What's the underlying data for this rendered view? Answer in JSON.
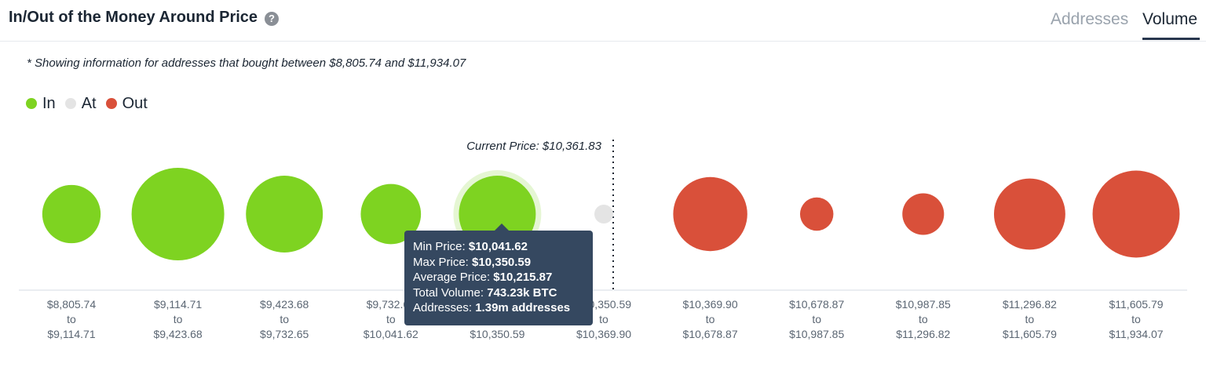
{
  "header": {
    "title": "In/Out of the Money Around Price",
    "help_icon": "question-mark-icon",
    "tabs": [
      {
        "label": "Addresses",
        "active": false
      },
      {
        "label": "Volume",
        "active": true
      }
    ]
  },
  "note": "* Showing information for addresses that bought between $8,805.74 and $11,934.07",
  "legend": [
    {
      "label": "In",
      "color": "#7ed321"
    },
    {
      "label": "At",
      "color": "#e4e4e4"
    },
    {
      "label": "Out",
      "color": "#d9503a"
    }
  ],
  "chart_data": {
    "type": "bubble",
    "current_price_label": "Current Price: $10,361.83",
    "current_price": 10361.83,
    "size_metric": "Total Volume (BTC)",
    "categories": [
      {
        "from": "$8,805.74",
        "to": "$9,114.71",
        "status": "In",
        "relative_size": 0.63
      },
      {
        "from": "$9,114.71",
        "to": "$9,423.68",
        "status": "In",
        "relative_size": 1.0
      },
      {
        "from": "$9,423.68",
        "to": "$9,732.65",
        "status": "In",
        "relative_size": 0.83
      },
      {
        "from": "$9,732.65",
        "to": "$10,041.62",
        "status": "In",
        "relative_size": 0.65
      },
      {
        "from": "$10,041.62",
        "to": "$10,350.59",
        "status": "In",
        "relative_size": 0.83,
        "highlighted": true
      },
      {
        "from": "$10,350.59",
        "to": "$10,369.90",
        "status": "At",
        "relative_size": 0.05
      },
      {
        "from": "$10,369.90",
        "to": "$10,678.87",
        "status": "Out",
        "relative_size": 0.8
      },
      {
        "from": "$10,678.87",
        "to": "$10,987.85",
        "status": "Out",
        "relative_size": 0.36
      },
      {
        "from": "$10,987.85",
        "to": "$11,296.82",
        "status": "Out",
        "relative_size": 0.45
      },
      {
        "from": "$11,296.82",
        "to": "$11,605.79",
        "status": "Out",
        "relative_size": 0.77
      },
      {
        "from": "$11,605.79",
        "to": "$11,934.07",
        "status": "Out",
        "relative_size": 0.94
      }
    ],
    "tooltip": {
      "rows": [
        {
          "label": "Min Price:",
          "value": "$10,041.62"
        },
        {
          "label": "Max Price:",
          "value": "$10,350.59"
        },
        {
          "label": "Average Price:",
          "value": "$10,215.87"
        },
        {
          "label": "Total Volume:",
          "value": "743.23k BTC"
        },
        {
          "label": "Addresses:",
          "value": "1.39m addresses"
        }
      ]
    }
  }
}
